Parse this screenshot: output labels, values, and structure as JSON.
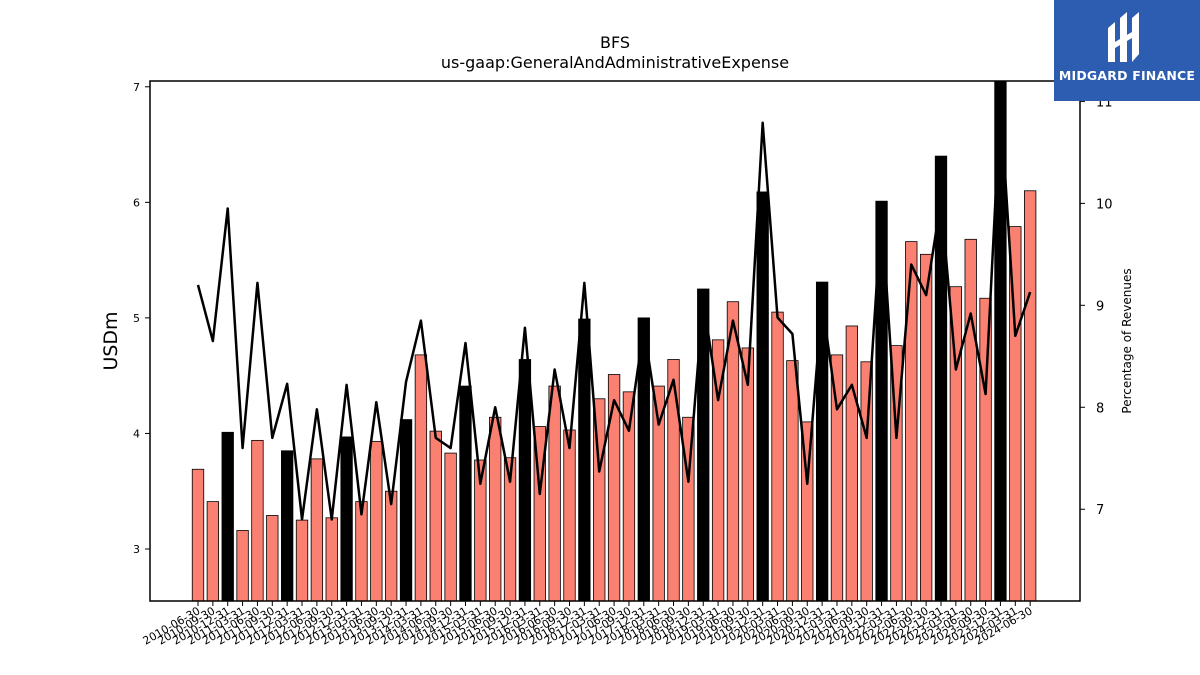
{
  "chart_data": {
    "type": "bar",
    "title": "BFS",
    "subtitle": "us-gaap:GeneralAndAdministrativeExpense",
    "ylabel": "USDm",
    "y2label": "Percentage of Revenues",
    "ylim": [
      2.55,
      7.05
    ],
    "y2lim": [
      6.1,
      11.2
    ],
    "yticks": [
      "3",
      "4",
      "5",
      "6",
      "7"
    ],
    "y2ticks": [
      "7",
      "8",
      "9",
      "10",
      "11"
    ],
    "categories": [
      "2010-06-30",
      "2010-09-30",
      "2010-12-31",
      "2011-03-31",
      "2011-06-30",
      "2011-09-30",
      "2011-12-31",
      "2012-03-31",
      "2012-06-30",
      "2012-09-30",
      "2012-12-31",
      "2013-03-31",
      "2013-06-30",
      "2013-09-30",
      "2013-12-31",
      "2014-03-31",
      "2014-06-30",
      "2014-09-30",
      "2014-12-31",
      "2015-03-31",
      "2015-06-30",
      "2015-09-30",
      "2015-12-31",
      "2016-03-31",
      "2016-06-30",
      "2016-09-30",
      "2016-12-31",
      "2017-03-31",
      "2017-06-30",
      "2017-09-30",
      "2017-12-31",
      "2018-03-31",
      "2018-06-30",
      "2018-09-30",
      "2018-12-31",
      "2019-03-31",
      "2019-06-30",
      "2019-09-30",
      "2019-12-31",
      "2020-03-31",
      "2020-06-30",
      "2020-09-30",
      "2020-12-31",
      "2021-03-31",
      "2021-06-30",
      "2021-09-30",
      "2021-12-31",
      "2022-03-31",
      "2022-06-30",
      "2022-09-30",
      "2022-12-31",
      "2023-03-31",
      "2023-06-30",
      "2023-09-30",
      "2023-12-31",
      "2024-03-31",
      "2024-06-30"
    ],
    "xtick_labels": [
      "2010-06-30",
      "2010-09-30",
      "2010-12-31",
      "2011-03-31",
      "2011-06-30",
      "2011-09-30",
      "2011-12-31",
      "2012-03-31",
      "2012-06-30",
      "2012-09-30",
      "2012-12-31",
      "2013-03-31",
      "2013-06-30",
      "2013-09-30",
      "2013-12-31",
      "2014-03-31",
      "2014-06-30",
      "2014-09-30",
      "2014-12-31",
      "2015-03-31",
      "2015-06-30",
      "2015-09-30",
      "2015-12-31",
      "2016-03-31",
      "2016-06-30",
      "2016-09-30",
      "2016-12-31",
      "2017-03-31",
      "2017-06-30",
      "2017-09-30",
      "2017-12-31",
      "2018-03-31",
      "2018-06-30",
      "2018-09-30",
      "2018-12-31",
      "2019-03-31",
      "2019-06-30",
      "2019-09-30",
      "2019-12-31",
      "2020-03-31",
      "2020-06-30",
      "2020-09-30",
      "2020-12-31",
      "2021-03-31",
      "2021-06-30",
      "2021-09-30",
      "2021-12-31",
      "2022-03-31",
      "2022-06-30",
      "2022-09-30",
      "2022-12-31",
      "2023-03-31",
      "2023-06-30",
      "2023-09-30",
      "2023-12-31",
      "2024-03-31",
      "2024-06-30"
    ],
    "series": [
      {
        "kind": "bar",
        "axis": "left",
        "values": [
          3.69,
          3.41,
          4.01,
          3.16,
          3.94,
          3.29,
          3.85,
          3.25,
          3.78,
          3.27,
          3.97,
          3.41,
          3.93,
          3.5,
          4.12,
          4.68,
          4.02,
          3.83,
          4.41,
          3.77,
          4.14,
          3.79,
          4.64,
          4.06,
          4.41,
          4.03,
          4.99,
          4.3,
          4.51,
          4.36,
          5.0,
          4.41,
          4.64,
          4.14,
          5.25,
          4.81,
          5.14,
          4.74,
          6.09,
          5.05,
          4.63,
          4.1,
          5.31,
          4.68,
          4.93,
          4.62,
          6.01,
          4.76,
          5.66,
          5.55,
          6.4,
          5.27,
          5.68,
          5.17,
          7.05,
          5.79,
          6.1
        ],
        "highlight": [
          false,
          false,
          true,
          false,
          false,
          false,
          true,
          false,
          false,
          false,
          true,
          false,
          false,
          false,
          true,
          false,
          false,
          false,
          true,
          false,
          false,
          false,
          true,
          false,
          false,
          false,
          true,
          false,
          false,
          false,
          true,
          false,
          false,
          false,
          true,
          false,
          false,
          false,
          true,
          false,
          false,
          false,
          true,
          false,
          false,
          false,
          true,
          false,
          false,
          false,
          true,
          false,
          false,
          false,
          true,
          false,
          false
        ],
        "color": "#fa8072",
        "highlight_color": "#000000"
      },
      {
        "kind": "line",
        "axis": "right",
        "values": [
          9.2,
          8.65,
          9.95,
          7.6,
          9.22,
          7.7,
          8.23,
          6.9,
          7.98,
          6.9,
          8.22,
          6.95,
          8.05,
          7.05,
          8.25,
          8.85,
          7.7,
          7.6,
          8.63,
          7.25,
          8.0,
          7.27,
          8.78,
          7.15,
          8.37,
          7.6,
          9.22,
          7.37,
          8.07,
          7.77,
          8.78,
          7.83,
          8.27,
          7.27,
          9.05,
          8.07,
          8.85,
          8.22,
          10.79,
          8.88,
          8.72,
          7.25,
          9.03,
          7.98,
          8.22,
          7.7,
          9.93,
          7.7,
          9.4,
          9.1,
          10.03,
          8.37,
          8.92,
          8.13,
          11.0,
          8.7,
          9.13
        ],
        "color": "#000000"
      }
    ],
    "grid": false,
    "legend": "none"
  },
  "branding": {
    "logo_text": "MIDGARD FINANCE",
    "background": "#2c5db0"
  }
}
